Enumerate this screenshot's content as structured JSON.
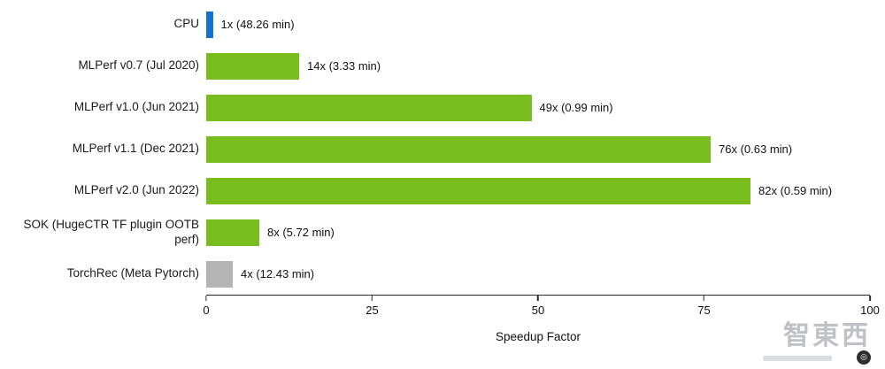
{
  "chart_data": {
    "type": "bar",
    "orientation": "horizontal",
    "xlabel": "Speedup Factor",
    "xlim": [
      0,
      100
    ],
    "xticks": [
      0,
      25,
      50,
      75,
      100
    ],
    "grid": false,
    "legend": false,
    "categories": [
      "CPU",
      "MLPerf v0.7 (Jul 2020)",
      "MLPerf v1.0 (Jun 2021)",
      "MLPerf v1.1 (Dec 2021)",
      "MLPerf v2.0 (Jun 2022)",
      "SOK (HugeCTR TF plugin OOTB perf)",
      "TorchRec (Meta Pytorch)"
    ],
    "values": [
      1,
      14,
      49,
      76,
      82,
      8,
      4
    ],
    "value_labels": [
      "1x (48.26 min)",
      "14x (3.33 min)",
      "49x (0.99 min)",
      "76x (0.63 min)",
      "82x (0.59 min)",
      "8x (5.72 min)",
      "4x (12.43 min)"
    ],
    "bar_colors": [
      "#1273d2",
      "#79bc1d",
      "#79bc1d",
      "#79bc1d",
      "#79bc1d",
      "#79bc1d",
      "#b5b5b5"
    ]
  },
  "watermark": {
    "text": "智東西"
  }
}
